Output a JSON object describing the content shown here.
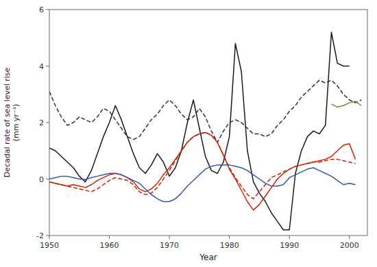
{
  "chart_data": {
    "type": "line",
    "xlabel": "Year",
    "ylabel": "Decadal rate of sea level rise\n(mm yr⁻¹)",
    "xlim": [
      1950,
      2003
    ],
    "ylim": [
      -2,
      6
    ],
    "xticks": [
      1950,
      1960,
      1970,
      1980,
      1990,
      2000
    ],
    "yticks": [
      -2,
      0,
      2,
      4,
      6
    ],
    "grid": false,
    "series": [
      {
        "color": "#333333",
        "line_style": "dashed",
        "x": [
          1950,
          1951,
          1952,
          1953,
          1954,
          1955,
          1956,
          1957,
          1958,
          1959,
          1960,
          1961,
          1962,
          1963,
          1964,
          1965,
          1966,
          1967,
          1968,
          1969,
          1970,
          1971,
          1972,
          1973,
          1974,
          1975,
          1976,
          1977,
          1978,
          1979,
          1980,
          1981,
          1982,
          1983,
          1984,
          1985,
          1986,
          1987,
          1988,
          1989,
          1990,
          1991,
          1992,
          1993,
          1994,
          1995,
          1996,
          1997,
          1998,
          1999,
          2000,
          2001,
          2002
        ],
        "values": [
          3.1,
          2.6,
          2.2,
          1.9,
          2.0,
          2.2,
          2.1,
          2.0,
          2.2,
          2.5,
          2.4,
          2.1,
          1.8,
          1.5,
          1.4,
          1.5,
          1.8,
          2.1,
          2.3,
          2.6,
          2.8,
          2.6,
          2.3,
          2.1,
          2.2,
          2.5,
          2.2,
          1.7,
          1.3,
          1.7,
          2.0,
          2.1,
          2.0,
          1.8,
          1.6,
          1.6,
          1.5,
          1.6,
          1.9,
          2.1,
          2.4,
          2.6,
          2.9,
          3.1,
          3.3,
          3.5,
          3.4,
          3.5,
          3.3,
          3.0,
          2.8,
          2.7,
          2.8
        ]
      },
      {
        "color": "#1a1a1a",
        "line_style": "solid",
        "x": [
          1950,
          1951,
          1952,
          1953,
          1954,
          1955,
          1956,
          1957,
          1958,
          1959,
          1960,
          1961,
          1962,
          1963,
          1964,
          1965,
          1966,
          1967,
          1968,
          1969,
          1970,
          1971,
          1972,
          1973,
          1974,
          1975,
          1976,
          1977,
          1978,
          1979,
          1980,
          1981,
          1982,
          1983,
          1984,
          1985,
          1986,
          1987,
          1988,
          1989,
          1990,
          1991,
          1992,
          1993,
          1994,
          1995,
          1996,
          1997,
          1998,
          1999,
          2000
        ],
        "values": [
          1.1,
          1.0,
          0.8,
          0.6,
          0.4,
          0.1,
          -0.1,
          0.3,
          0.9,
          1.5,
          2.0,
          2.6,
          2.1,
          1.5,
          0.9,
          0.4,
          0.2,
          0.5,
          0.9,
          0.6,
          0.1,
          0.4,
          1.0,
          2.0,
          2.8,
          1.8,
          0.8,
          0.3,
          0.2,
          0.6,
          1.5,
          4.8,
          3.8,
          1.0,
          -0.1,
          -0.5,
          -0.8,
          -1.2,
          -1.5,
          -1.8,
          -1.8,
          0.2,
          1.0,
          1.5,
          1.7,
          1.6,
          1.9,
          5.2,
          4.1,
          4.0,
          4.0
        ]
      },
      {
        "color": "#cc2200",
        "line_style": "dashed",
        "x": [
          1950,
          1951,
          1952,
          1953,
          1954,
          1955,
          1956,
          1957,
          1958,
          1959,
          1960,
          1961,
          1962,
          1963,
          1964,
          1965,
          1966,
          1967,
          1968,
          1969,
          1970,
          1971,
          1972,
          1973,
          1974,
          1975,
          1976,
          1977,
          1978,
          1979,
          1980,
          1981,
          1982,
          1983,
          1984,
          1985,
          1986,
          1987,
          1988,
          1989,
          1990,
          1991,
          1992,
          1993,
          1994,
          1995,
          1996,
          1997,
          1998,
          1999,
          2000,
          2001
        ],
        "values": [
          -0.1,
          -0.15,
          -0.2,
          -0.25,
          -0.3,
          -0.35,
          -0.4,
          -0.45,
          -0.35,
          -0.2,
          -0.05,
          0.05,
          0.0,
          -0.05,
          -0.2,
          -0.45,
          -0.55,
          -0.5,
          -0.3,
          0.0,
          0.3,
          0.65,
          1.0,
          1.3,
          1.5,
          1.6,
          1.65,
          1.55,
          1.3,
          0.85,
          0.4,
          0.05,
          -0.25,
          -0.55,
          -0.7,
          -0.45,
          -0.2,
          0.05,
          0.15,
          0.25,
          0.35,
          0.45,
          0.5,
          0.55,
          0.6,
          0.6,
          0.65,
          0.7,
          0.7,
          0.65,
          0.6,
          0.55
        ]
      },
      {
        "color": "#cc2200",
        "line_style": "solid",
        "x": [
          1950,
          1951,
          1952,
          1953,
          1954,
          1955,
          1956,
          1957,
          1958,
          1959,
          1960,
          1961,
          1962,
          1963,
          1964,
          1965,
          1966,
          1967,
          1968,
          1969,
          1970,
          1971,
          1972,
          1973,
          1974,
          1975,
          1976,
          1977,
          1978,
          1979,
          1980,
          1981,
          1982,
          1983,
          1984,
          1985,
          1986,
          1987,
          1988,
          1989,
          1990,
          1991,
          1992,
          1993,
          1994,
          1995,
          1996,
          1997,
          1998,
          1999,
          2000,
          2001
        ],
        "values": [
          -0.1,
          -0.15,
          -0.2,
          -0.25,
          -0.2,
          -0.25,
          -0.3,
          -0.2,
          -0.05,
          0.05,
          0.15,
          0.2,
          0.15,
          0.05,
          -0.1,
          -0.35,
          -0.45,
          -0.35,
          -0.15,
          0.15,
          0.4,
          0.7,
          1.0,
          1.3,
          1.5,
          1.6,
          1.65,
          1.55,
          1.3,
          0.85,
          0.35,
          0.0,
          -0.4,
          -0.8,
          -1.1,
          -0.9,
          -0.6,
          -0.3,
          0.0,
          0.2,
          0.35,
          0.45,
          0.5,
          0.55,
          0.6,
          0.65,
          0.7,
          0.8,
          1.0,
          1.2,
          1.25,
          0.7
        ]
      },
      {
        "color": "#3355aa",
        "line_style": "solid",
        "x": [
          1950,
          1951,
          1952,
          1953,
          1954,
          1955,
          1956,
          1957,
          1958,
          1959,
          1960,
          1961,
          1962,
          1963,
          1964,
          1965,
          1966,
          1967,
          1968,
          1969,
          1970,
          1971,
          1972,
          1973,
          1974,
          1975,
          1976,
          1977,
          1978,
          1979,
          1980,
          1981,
          1982,
          1983,
          1984,
          1985,
          1986,
          1987,
          1988,
          1989,
          1990,
          1991,
          1992,
          1993,
          1994,
          1995,
          1996,
          1997,
          1998,
          1999,
          2000,
          2001
        ],
        "values": [
          0.0,
          0.05,
          0.1,
          0.1,
          0.05,
          0.0,
          -0.02,
          0.05,
          0.1,
          0.15,
          0.2,
          0.2,
          0.15,
          0.05,
          -0.05,
          -0.15,
          -0.35,
          -0.55,
          -0.7,
          -0.8,
          -0.8,
          -0.7,
          -0.5,
          -0.25,
          -0.05,
          0.15,
          0.35,
          0.45,
          0.5,
          0.5,
          0.5,
          0.45,
          0.4,
          0.3,
          0.15,
          0.0,
          -0.15,
          -0.25,
          -0.25,
          -0.2,
          0.05,
          0.15,
          0.25,
          0.35,
          0.4,
          0.3,
          0.2,
          0.1,
          -0.05,
          -0.2,
          -0.15,
          -0.2
        ]
      },
      {
        "color": "#6b8c3a",
        "line_style": "solid",
        "x": [
          1997,
          1998,
          1999,
          2000,
          2001,
          2002
        ],
        "values": [
          2.65,
          2.55,
          2.6,
          2.7,
          2.75,
          2.6
        ]
      }
    ]
  }
}
